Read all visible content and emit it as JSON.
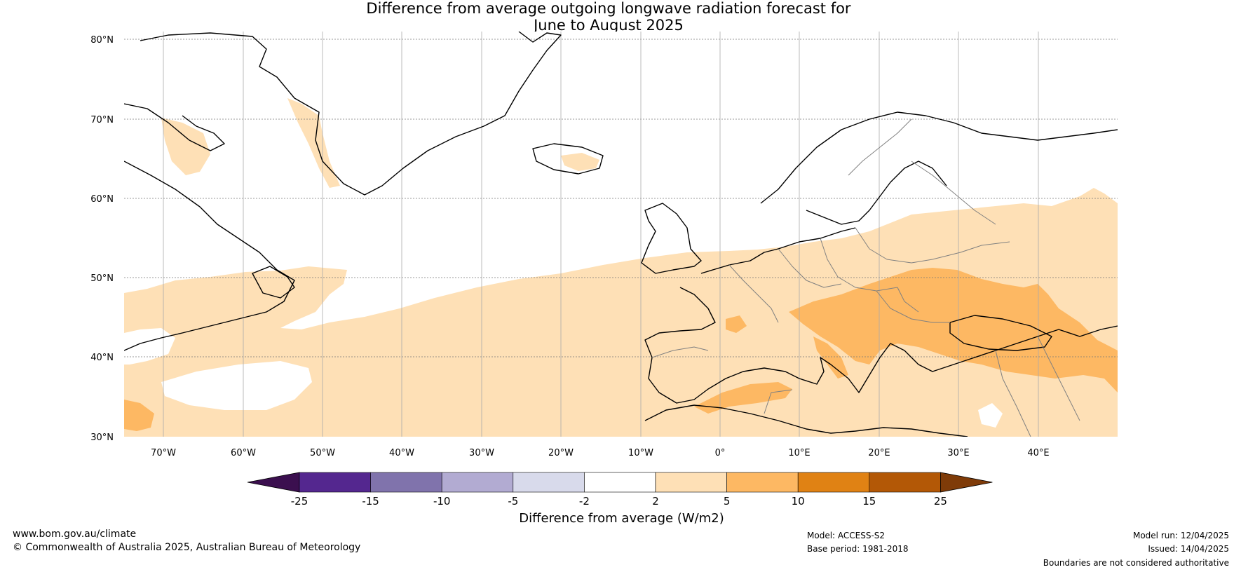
{
  "title": {
    "line1": "Difference from average outgoing longwave radiation forecast for",
    "line2": "June to August 2025"
  },
  "map": {
    "lat_labels": [
      "80°N",
      "70°N",
      "60°N",
      "50°N",
      "40°N",
      "30°N"
    ],
    "lon_labels": [
      "70°W",
      "60°W",
      "50°W",
      "40°W",
      "30°W",
      "20°W",
      "10°W",
      "0°",
      "10°E",
      "20°E",
      "30°E",
      "40°E"
    ],
    "lat_range": [
      30,
      81
    ],
    "lon_range": [
      -75,
      50
    ],
    "colors": {
      "land_line": "#000000",
      "border_line": "#808080",
      "grid": "#777777"
    }
  },
  "legend": {
    "title": "Difference from average (W/m2)",
    "ticks": [
      "-25",
      "-15",
      "-10",
      "-5",
      "-2",
      "2",
      "5",
      "10",
      "15",
      "25"
    ],
    "colors": [
      "#3b0f4f",
      "#54278f",
      "#8073ac",
      "#b2abd2",
      "#d8daeb",
      "#ffffff",
      "#fee0b6",
      "#fdb863",
      "#e08214",
      "#b35806",
      "#7f3b08"
    ]
  },
  "footer": {
    "website": "www.bom.gov.au/climate",
    "copyright": "© Commonwealth of Australia 2025, Australian Bureau of Meteorology",
    "model": "Model: ACCESS-S2",
    "base_period": "Base period: 1981-2018",
    "model_run": "Model run: 12/04/2025",
    "issued": "Issued: 14/04/2025",
    "disclaimer": "Boundaries are not considered authoritative"
  }
}
